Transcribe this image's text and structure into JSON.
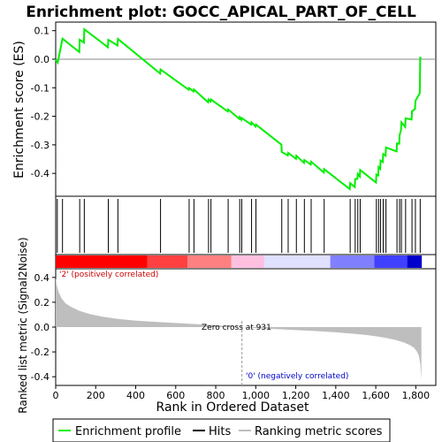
{
  "chart_data": {
    "type": "line",
    "title": "Enrichment plot: GOCC_APICAL_PART_OF_CELL",
    "es_panel": {
      "ylabel": "Enrichment score (ES)",
      "ylim": [
        -0.48,
        0.13
      ],
      "yticks": [
        0.1,
        0.0,
        -0.1,
        -0.2,
        -0.3,
        -0.4
      ],
      "ytick_labels": [
        "0.1",
        "0.0",
        "-0.1",
        "-0.2",
        "-0.3",
        "-0.4"
      ]
    },
    "metric_panel": {
      "ylabel": "Ranked list metric (Signal2Noise)",
      "ylim": [
        -0.47,
        0.47
      ],
      "yticks": [
        0.4,
        0.2,
        0.0,
        -0.2,
        -0.4
      ],
      "ytick_labels": [
        "0.4",
        "0.2",
        "0.0",
        "-0.2",
        "-0.4"
      ],
      "zero_cross_label": "Zero cross at 931",
      "zero_cross": 931,
      "pos_label": "'2' (positively correlated)",
      "neg_label": "'0' (negatively correlated)"
    },
    "xlabel": "Rank in Ordered Dataset",
    "xlim": [
      0,
      1900
    ],
    "xticks": [
      0,
      200,
      400,
      600,
      800,
      1000,
      1200,
      1400,
      1600,
      1800
    ],
    "xtick_labels": [
      "0",
      "200",
      "400",
      "600",
      "800",
      "1,000",
      "1,200",
      "1,400",
      "1,600",
      "1,800"
    ],
    "n_ranks": 1830,
    "hits": [
      8,
      34,
      120,
      143,
      263,
      311,
      524,
      667,
      691,
      764,
      776,
      862,
      920,
      930,
      979,
      1001,
      1130,
      1162,
      1203,
      1243,
      1277,
      1342,
      1472,
      1497,
      1510,
      1522,
      1603,
      1614,
      1624,
      1637,
      1651,
      1706,
      1719,
      1728,
      1749,
      1781,
      1798,
      1822
    ],
    "es_profile": {
      "x": [
        0,
        8,
        10,
        34,
        118,
        120,
        141,
        143,
        261,
        263,
        309,
        311,
        522,
        524,
        665,
        667,
        689,
        691,
        762,
        764,
        774,
        776,
        860,
        862,
        918,
        920,
        928,
        930,
        977,
        979,
        999,
        1001,
        1128,
        1130,
        1160,
        1162,
        1201,
        1203,
        1241,
        1243,
        1275,
        1277,
        1340,
        1342,
        1470,
        1472,
        1495,
        1497,
        1508,
        1510,
        1520,
        1522,
        1601,
        1603,
        1612,
        1614,
        1622,
        1624,
        1635,
        1637,
        1649,
        1651,
        1704,
        1706,
        1717,
        1719,
        1726,
        1728,
        1747,
        1749,
        1779,
        1781,
        1796,
        1798,
        1820,
        1822,
        1828
      ],
      "y": [
        0.0,
        -0.01,
        -0.012,
        0.072,
        0.025,
        0.068,
        0.058,
        0.105,
        0.042,
        0.068,
        0.048,
        0.071,
        -0.05,
        -0.036,
        -0.107,
        -0.101,
        -0.113,
        -0.106,
        -0.151,
        -0.141,
        -0.148,
        -0.141,
        -0.183,
        -0.176,
        -0.209,
        -0.203,
        -0.212,
        -0.206,
        -0.229,
        -0.221,
        -0.236,
        -0.229,
        -0.299,
        -0.325,
        -0.337,
        -0.328,
        -0.349,
        -0.338,
        -0.363,
        -0.353,
        -0.369,
        -0.359,
        -0.397,
        -0.385,
        -0.455,
        -0.434,
        -0.448,
        -0.42,
        -0.419,
        -0.402,
        -0.411,
        -0.388,
        -0.432,
        -0.404,
        -0.407,
        -0.378,
        -0.384,
        -0.355,
        -0.36,
        -0.332,
        -0.338,
        -0.309,
        -0.323,
        -0.295,
        -0.296,
        -0.266,
        -0.249,
        -0.221,
        -0.237,
        -0.207,
        -0.211,
        -0.182,
        -0.175,
        -0.146,
        -0.119,
        0.005,
        0.003
      ]
    },
    "metric_profile": {
      "x": [
        0,
        5,
        15,
        30,
        50,
        80,
        120,
        170,
        230,
        300,
        400,
        500,
        600,
        700,
        800,
        900,
        931,
        1000,
        1100,
        1200,
        1300,
        1400,
        1500,
        1550,
        1600,
        1650,
        1700,
        1740,
        1770,
        1790,
        1805,
        1815,
        1822,
        1828
      ],
      "y": [
        0.4,
        0.34,
        0.28,
        0.23,
        0.19,
        0.16,
        0.13,
        0.105,
        0.085,
        0.068,
        0.052,
        0.042,
        0.033,
        0.024,
        0.015,
        0.005,
        0.0,
        -0.008,
        -0.016,
        -0.024,
        -0.032,
        -0.042,
        -0.055,
        -0.063,
        -0.074,
        -0.087,
        -0.104,
        -0.124,
        -0.145,
        -0.166,
        -0.195,
        -0.23,
        -0.29,
        -0.42
      ]
    },
    "heatmap_colors": [
      "#ff0000",
      "#ff4040",
      "#ff8080",
      "#ffc0e0",
      "#e0e0ff",
      "#8080ff",
      "#4040ff",
      "#0000cc"
    ],
    "legend": [
      "Enrichment profile",
      "Hits",
      "Ranking metric scores"
    ],
    "colors": {
      "es_line": "#00ee00",
      "hit": "#000000",
      "metric_fill": "#bebebe",
      "pos_text": "#cc0000",
      "neg_text": "#0000cc"
    }
  }
}
